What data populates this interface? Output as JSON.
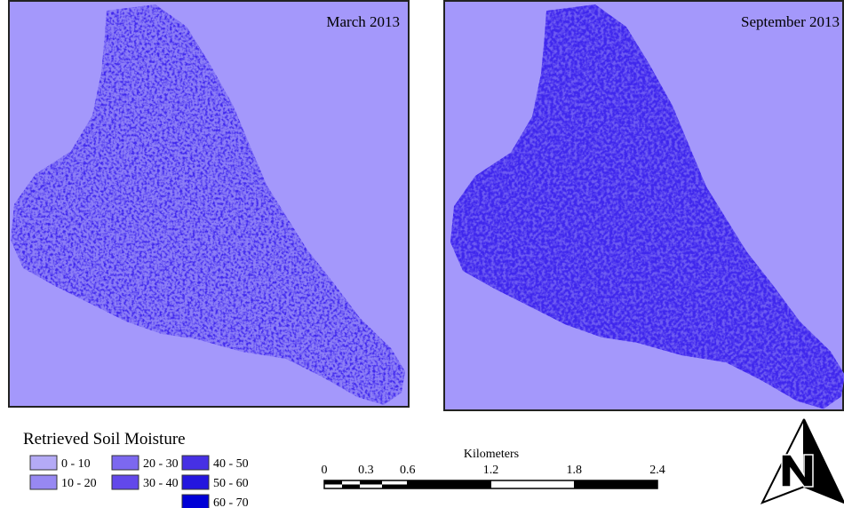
{
  "panels": [
    {
      "title": "March 2013"
    },
    {
      "title": "September 2013"
    }
  ],
  "legend": {
    "title": "Retrieved Soil Moisture",
    "items": [
      {
        "label": "0 - 10",
        "color": "#b4aaf6"
      },
      {
        "label": "10 - 20",
        "color": "#9788f2"
      },
      {
        "label": "20 - 30",
        "color": "#7c68ef"
      },
      {
        "label": "30 - 40",
        "color": "#6248ea"
      },
      {
        "label": "40 - 50",
        "color": "#4630e4"
      },
      {
        "label": "50 - 60",
        "color": "#2416de"
      },
      {
        "label": "60 - 70",
        "color": "#0000d6"
      }
    ]
  },
  "scale_bar": {
    "title": "Kilometers",
    "ticks": [
      0,
      0.3,
      0.6,
      1.2,
      1.8,
      2.4
    ]
  }
}
